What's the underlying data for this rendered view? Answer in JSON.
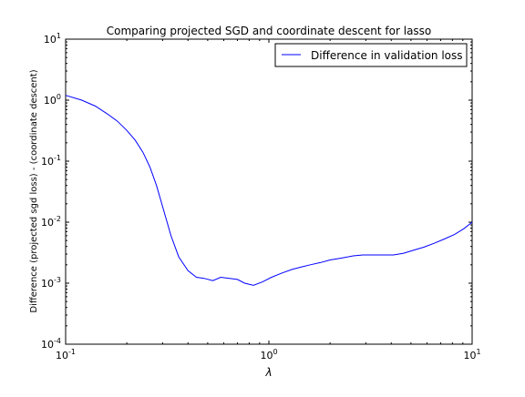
{
  "chart_data": {
    "type": "line",
    "title": "Comparing projected SGD and coordinate descent for lasso",
    "xlabel": "λ",
    "ylabel": "Difference (projected sgd loss) - (coordinate descent)",
    "xscale": "log",
    "yscale": "log",
    "xlim": [
      0.1,
      10
    ],
    "ylim": [
      0.0001,
      10
    ],
    "xticks": [
      {
        "value": 0.1,
        "base": "10",
        "exp": "-1"
      },
      {
        "value": 1,
        "base": "10",
        "exp": "0"
      },
      {
        "value": 10,
        "base": "10",
        "exp": "1"
      }
    ],
    "yticks": [
      {
        "value": 0.0001,
        "base": "10",
        "exp": "-4"
      },
      {
        "value": 0.001,
        "base": "10",
        "exp": "-3"
      },
      {
        "value": 0.01,
        "base": "10",
        "exp": "-2"
      },
      {
        "value": 0.1,
        "base": "10",
        "exp": "-1"
      },
      {
        "value": 1,
        "base": "10",
        "exp": "0"
      },
      {
        "value": 10,
        "base": "10",
        "exp": "1"
      }
    ],
    "legend_position": "top-right",
    "series": [
      {
        "name": "Difference in validation loss",
        "color": "#0000ff",
        "x": [
          0.1,
          0.12,
          0.14,
          0.16,
          0.18,
          0.2,
          0.22,
          0.24,
          0.26,
          0.28,
          0.3,
          0.33,
          0.36,
          0.4,
          0.44,
          0.48,
          0.53,
          0.58,
          0.64,
          0.7,
          0.76,
          0.84,
          0.93,
          1.03,
          1.15,
          1.3,
          1.45,
          1.6,
          1.8,
          2.0,
          2.3,
          2.6,
          2.9,
          3.3,
          3.7,
          4.1,
          4.6,
          5.2,
          5.8,
          6.5,
          7.3,
          8.2,
          9.1,
          10.0
        ],
        "y": [
          1.2,
          1.0,
          0.8,
          0.6,
          0.45,
          0.32,
          0.22,
          0.14,
          0.08,
          0.04,
          0.018,
          0.006,
          0.0027,
          0.0016,
          0.00125,
          0.0012,
          0.0011,
          0.00125,
          0.0012,
          0.00115,
          0.001,
          0.00092,
          0.00105,
          0.00125,
          0.00145,
          0.00168,
          0.00185,
          0.002,
          0.00218,
          0.0024,
          0.0026,
          0.0028,
          0.0029,
          0.0029,
          0.0029,
          0.0029,
          0.0031,
          0.0035,
          0.0039,
          0.0045,
          0.0053,
          0.0063,
          0.0078,
          0.01
        ]
      }
    ]
  }
}
